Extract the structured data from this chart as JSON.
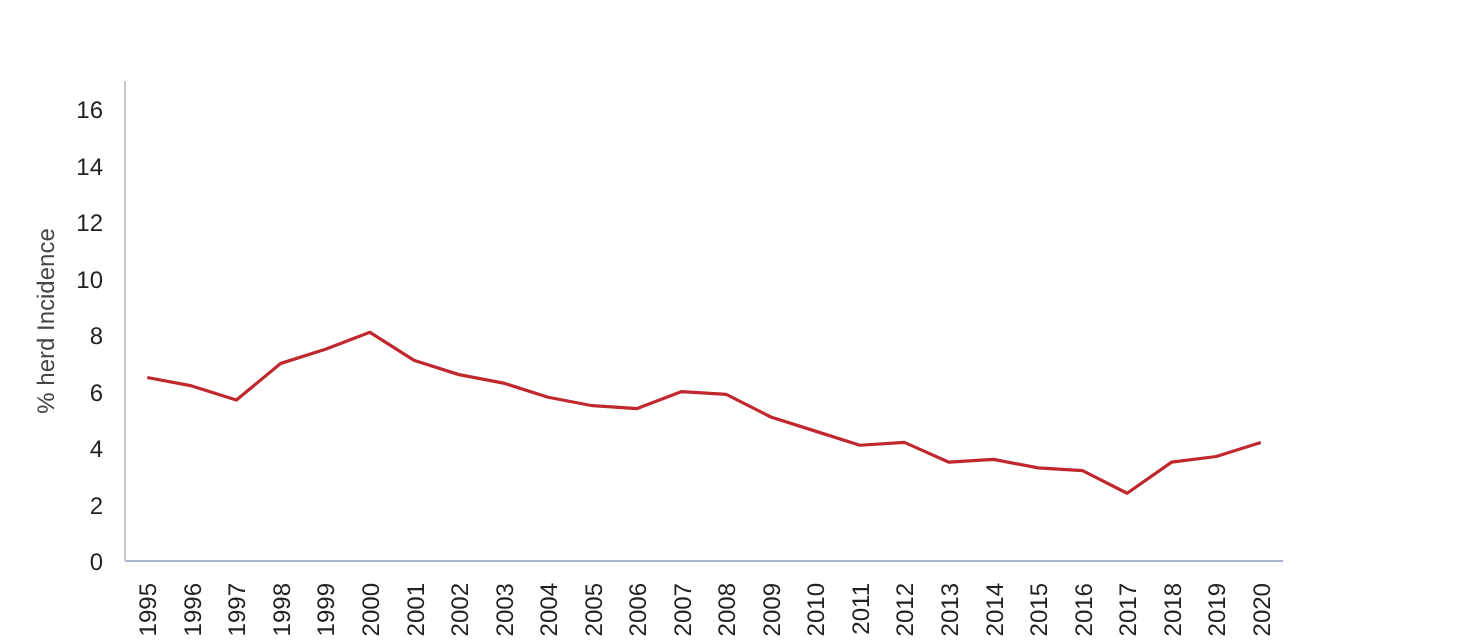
{
  "chart_data": {
    "type": "line",
    "ylabel": "% herd Incidence",
    "categories": [
      "1995",
      "1996",
      "1997",
      "1998",
      "1999",
      "2000",
      "2001",
      "2002",
      "2003",
      "2004",
      "2005",
      "2006",
      "2007",
      "2008",
      "2009",
      "2010",
      "2011",
      "2012",
      "2013",
      "2014",
      "2015",
      "2016",
      "2017",
      "2018",
      "2019",
      "2020"
    ],
    "series": [
      {
        "color": "#c0282e",
        "values": [
          6.5,
          6.2,
          5.7,
          7.0,
          7.5,
          8.1,
          7.1,
          6.6,
          6.3,
          5.8,
          5.5,
          5.4,
          6.0,
          5.9,
          5.1,
          4.6,
          4.1,
          4.2,
          3.5,
          3.6,
          3.3,
          3.2,
          2.4,
          3.5,
          3.7,
          4.2
        ]
      }
    ],
    "ylim": [
      0,
      17
    ],
    "yticks": [
      0,
      2,
      4,
      6,
      8,
      10,
      12,
      14,
      16
    ],
    "grid": false,
    "marker": "none",
    "line_style": "solid"
  }
}
